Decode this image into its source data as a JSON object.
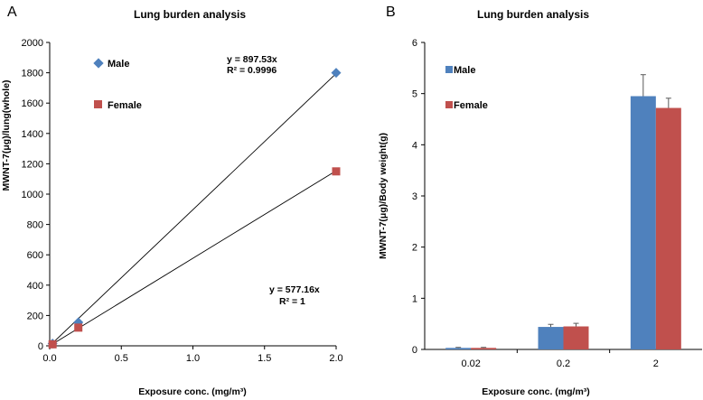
{
  "chart_data": [
    {
      "panel": "A",
      "type": "scatter",
      "title": "Lung burden analysis",
      "xlabel": "Exposure conc. (mg/m³)",
      "ylabel": "MWNT-7(μg)/lung(whole)",
      "xlim": [
        0,
        2.0
      ],
      "ylim": [
        0,
        2000
      ],
      "xticks": [
        0,
        0.5,
        1.0,
        1.5,
        2.0
      ],
      "xtick_labels": [
        "0.0",
        "0.5",
        "1.0",
        "1.5",
        "2.0"
      ],
      "yticks": [
        0,
        200,
        400,
        600,
        800,
        1000,
        1200,
        1400,
        1600,
        1800,
        2000
      ],
      "ytick_labels": [
        "0",
        "200",
        "400",
        "600",
        "800",
        "1000",
        "1200",
        "1400",
        "1600",
        "1800",
        "2000"
      ],
      "series": [
        {
          "name": "Male",
          "color": "#4F81BD",
          "marker": "diamond",
          "x": [
            0.02,
            0.2,
            2.0
          ],
          "y": [
            15,
            155,
            1800
          ],
          "trendline": {
            "slope": 897.53,
            "x_end": 2.0
          },
          "equation": "y = 897.53x",
          "r2": "R² = 0.9996"
        },
        {
          "name": "Female",
          "color": "#C0504D",
          "marker": "square",
          "x": [
            0.02,
            0.2,
            2.0
          ],
          "y": [
            10,
            120,
            1150
          ],
          "trendline": {
            "slope": 577.16,
            "x_end": 2.0
          },
          "equation": "y = 577.16x",
          "r2": "R² = 1"
        }
      ]
    },
    {
      "panel": "B",
      "type": "bar",
      "title": "Lung burden analysis",
      "xlabel": "Exposure conc. (mg/m³)",
      "ylabel": "MWNT-7(μg)/Body weight(g)",
      "ylim": [
        0,
        6
      ],
      "yticks": [
        0,
        1,
        2,
        3,
        4,
        5,
        6
      ],
      "ytick_labels": [
        "0",
        "1",
        "2",
        "3",
        "4",
        "5",
        "6"
      ],
      "categories": [
        "0.02",
        "0.2",
        "2"
      ],
      "series": [
        {
          "name": "Male",
          "color": "#4F81BD",
          "values": [
            0.03,
            0.44,
            4.95
          ],
          "errors": [
            0.01,
            0.05,
            0.42
          ]
        },
        {
          "name": "Female",
          "color": "#C0504D",
          "values": [
            0.03,
            0.45,
            4.72
          ],
          "errors": [
            0.01,
            0.06,
            0.19
          ]
        }
      ]
    }
  ]
}
